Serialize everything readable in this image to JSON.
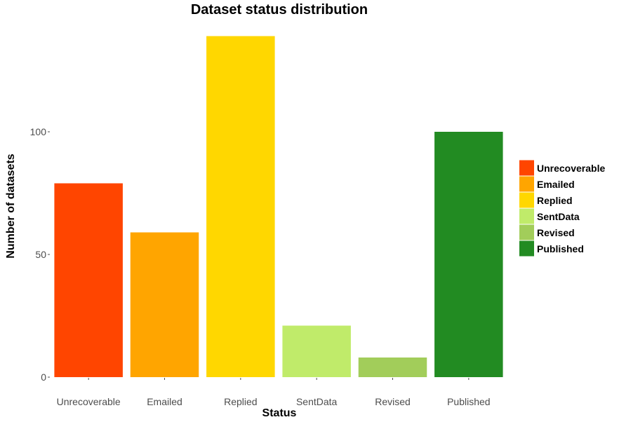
{
  "chart_data": {
    "type": "bar",
    "title": "Dataset status distribution",
    "xlabel": "Status",
    "ylabel": "Number of datasets",
    "categories": [
      "Unrecoverable",
      "Emailed",
      "Replied",
      "SentData",
      "Revised",
      "Published"
    ],
    "values": [
      79,
      59,
      139,
      21,
      8,
      100
    ],
    "colors": [
      "#FF4500",
      "#FFA500",
      "#FFD700",
      "#C0EB6A",
      "#A2CD5A",
      "#228B22"
    ],
    "ylim": [
      0,
      140
    ],
    "yticks": [
      0,
      50,
      100
    ],
    "grid": false,
    "legend": {
      "position": "right",
      "entries": [
        "Unrecoverable",
        "Emailed",
        "Replied",
        "SentData",
        "Revised",
        "Published"
      ]
    }
  }
}
